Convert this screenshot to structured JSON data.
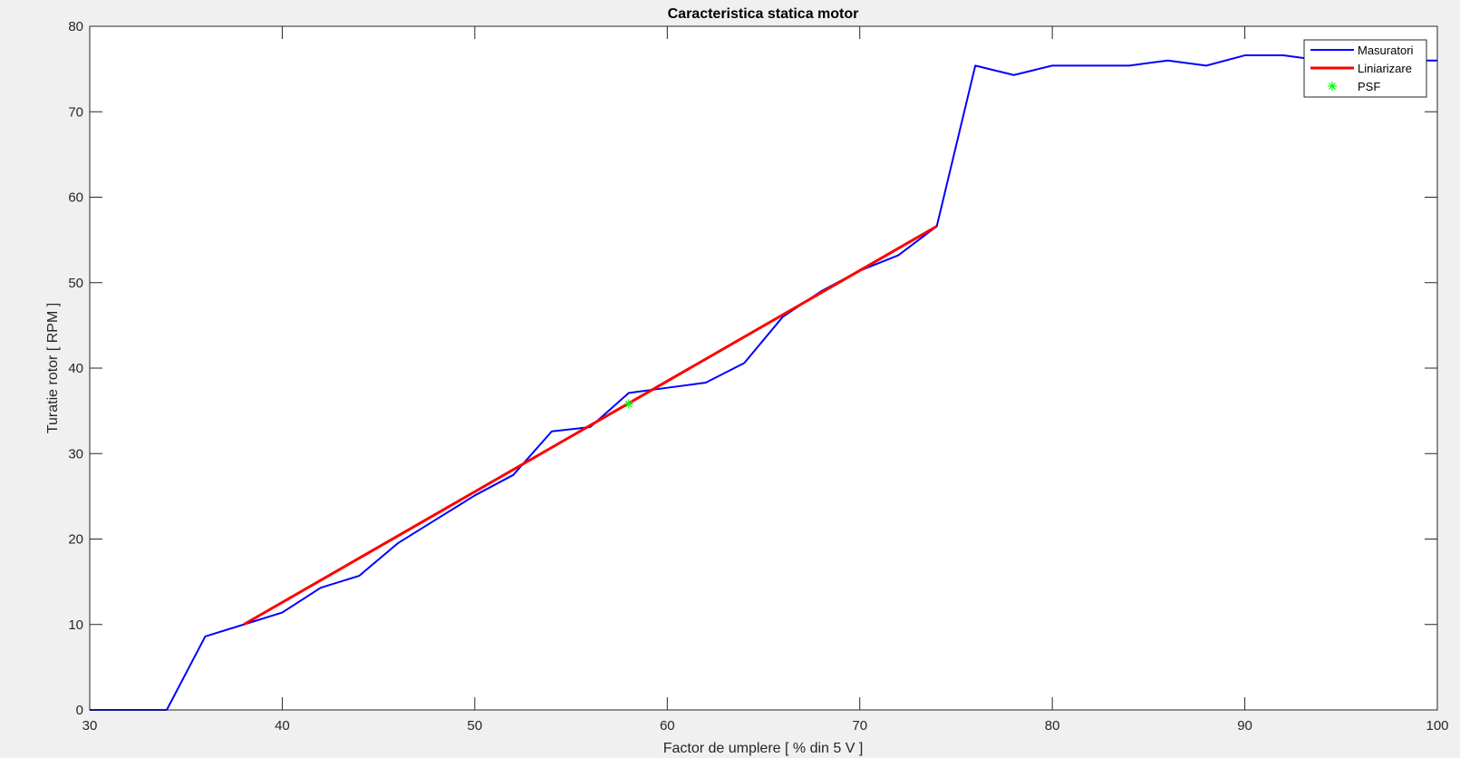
{
  "chart_data": {
    "type": "line",
    "title": "Caracteristica statica motor",
    "xlabel": "Factor de umplere [ % din 5 V ]",
    "ylabel": "Turatie rotor [ RPM ]",
    "xlim": [
      30,
      100
    ],
    "ylim": [
      0,
      80
    ],
    "xticks": [
      30,
      40,
      50,
      60,
      70,
      80,
      90,
      100
    ],
    "yticks": [
      0,
      10,
      20,
      30,
      40,
      50,
      60,
      70,
      80
    ],
    "grid": false,
    "legend_position": "top-right",
    "series": [
      {
        "name": "Masuratori",
        "color": "#0000ff",
        "style": "line",
        "x": [
          30,
          32,
          34,
          36,
          38,
          40,
          42,
          44,
          46,
          48,
          50,
          52,
          54,
          56,
          58,
          60,
          62,
          64,
          66,
          68,
          70,
          72,
          74,
          76,
          78,
          80,
          82,
          84,
          86,
          88,
          90,
          92,
          94,
          96,
          98,
          100
        ],
        "y": [
          0,
          0,
          0,
          8.6,
          10,
          11.4,
          14.3,
          15.7,
          19.5,
          22.3,
          25.1,
          27.5,
          32.6,
          33.1,
          37.1,
          37.7,
          38.3,
          40.6,
          46.0,
          49.0,
          51.4,
          53.2,
          56.6,
          75.4,
          74.3,
          75.4,
          75.4,
          75.4,
          76.0,
          75.4,
          76.6,
          76.6,
          76.0,
          76.0,
          76.0,
          76.0
        ]
      },
      {
        "name": "Liniarizare",
        "color": "#ff0000",
        "style": "line",
        "x": [
          38,
          74
        ],
        "y": [
          10,
          56.6
        ]
      },
      {
        "name": "PSF",
        "color": "#00ff00",
        "style": "marker",
        "marker": "*",
        "x": [
          58
        ],
        "y": [
          35.8
        ]
      }
    ]
  }
}
